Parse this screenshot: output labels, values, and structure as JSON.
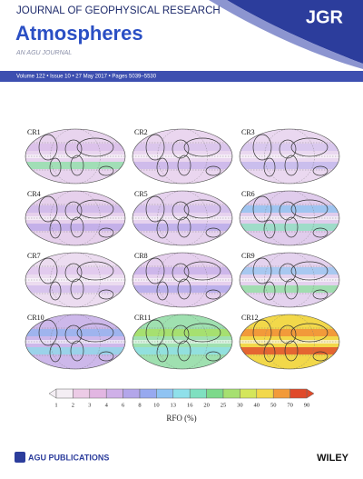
{
  "header": {
    "journal": "JOURNAL OF GEOPHYSICAL RESEARCH",
    "section": "Atmospheres",
    "tagline": "AN AGU JOURNAL",
    "logo": "JGR",
    "issue": "Volume 122 • Issue 10 • 27 May 2017 • Pages 5039–5530"
  },
  "figure": {
    "maps": [
      "CR1",
      "CR2",
      "CR3",
      "CR4",
      "CR5",
      "CR6",
      "CR7",
      "CR8",
      "CR9",
      "CR10",
      "CR11",
      "CR12"
    ],
    "colorbar": {
      "ticks": [
        1,
        2,
        3,
        4,
        6,
        8,
        10,
        13,
        16,
        20,
        25,
        30,
        40,
        50,
        70,
        90
      ],
      "colors": [
        "#f4eef4",
        "#eccbe6",
        "#e2b6e2",
        "#cfb0e8",
        "#b3a6ea",
        "#97a9ef",
        "#8fc3f2",
        "#8fe0ea",
        "#7fe0c0",
        "#7cd98a",
        "#a6e070",
        "#d4e65a",
        "#f2d84a",
        "#f29a3a",
        "#e04a2a"
      ],
      "label": "RFO (%)"
    }
  },
  "footer": {
    "publisher": "AGU PUBLICATIONS",
    "imprint": "WILEY"
  }
}
